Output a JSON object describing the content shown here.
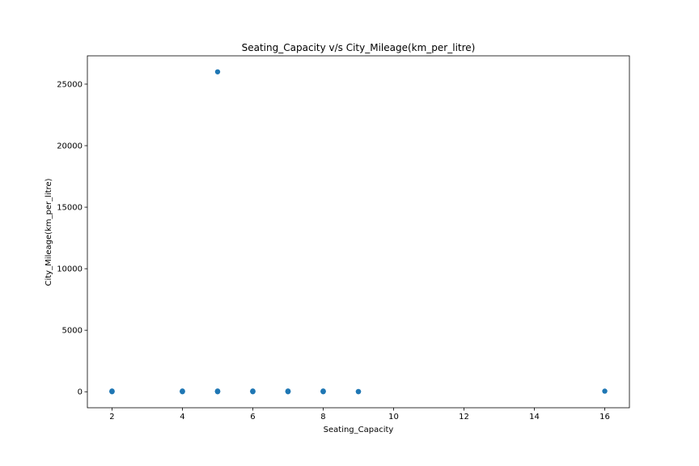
{
  "chart_data": {
    "type": "scatter",
    "title": "Seating_Capacity v/s City_Mileage(km_per_litre)",
    "xlabel": "Seating_Capacity",
    "ylabel": "City_Mileage(km_per_litre)",
    "xlim": [
      1.3,
      16.7
    ],
    "ylim": [
      -1300,
      27300
    ],
    "xticks": [
      2,
      4,
      6,
      8,
      10,
      12,
      14,
      16
    ],
    "yticks": [
      0,
      5000,
      10000,
      15000,
      20000,
      25000
    ],
    "grid": false,
    "point_color": "#1f77b4",
    "points": [
      {
        "x": 2,
        "y": 10
      },
      {
        "x": 2,
        "y": 15
      },
      {
        "x": 2,
        "y": 20
      },
      {
        "x": 2,
        "y": 40
      },
      {
        "x": 2,
        "y": 60
      },
      {
        "x": 4,
        "y": 10
      },
      {
        "x": 4,
        "y": 15
      },
      {
        "x": 4,
        "y": 20
      },
      {
        "x": 4,
        "y": 40
      },
      {
        "x": 4,
        "y": 60
      },
      {
        "x": 5,
        "y": 10
      },
      {
        "x": 5,
        "y": 15
      },
      {
        "x": 5,
        "y": 20
      },
      {
        "x": 5,
        "y": 40
      },
      {
        "x": 5,
        "y": 60
      },
      {
        "x": 5,
        "y": 26000
      },
      {
        "x": 6,
        "y": 10
      },
      {
        "x": 6,
        "y": 15
      },
      {
        "x": 6,
        "y": 20
      },
      {
        "x": 6,
        "y": 40
      },
      {
        "x": 6,
        "y": 60
      },
      {
        "x": 7,
        "y": 10
      },
      {
        "x": 7,
        "y": 15
      },
      {
        "x": 7,
        "y": 20
      },
      {
        "x": 7,
        "y": 40
      },
      {
        "x": 7,
        "y": 60
      },
      {
        "x": 8,
        "y": 10
      },
      {
        "x": 8,
        "y": 15
      },
      {
        "x": 8,
        "y": 20
      },
      {
        "x": 8,
        "y": 40
      },
      {
        "x": 8,
        "y": 60
      },
      {
        "x": 9,
        "y": 10
      },
      {
        "x": 9,
        "y": 15
      },
      {
        "x": 16,
        "y": 50
      }
    ]
  }
}
